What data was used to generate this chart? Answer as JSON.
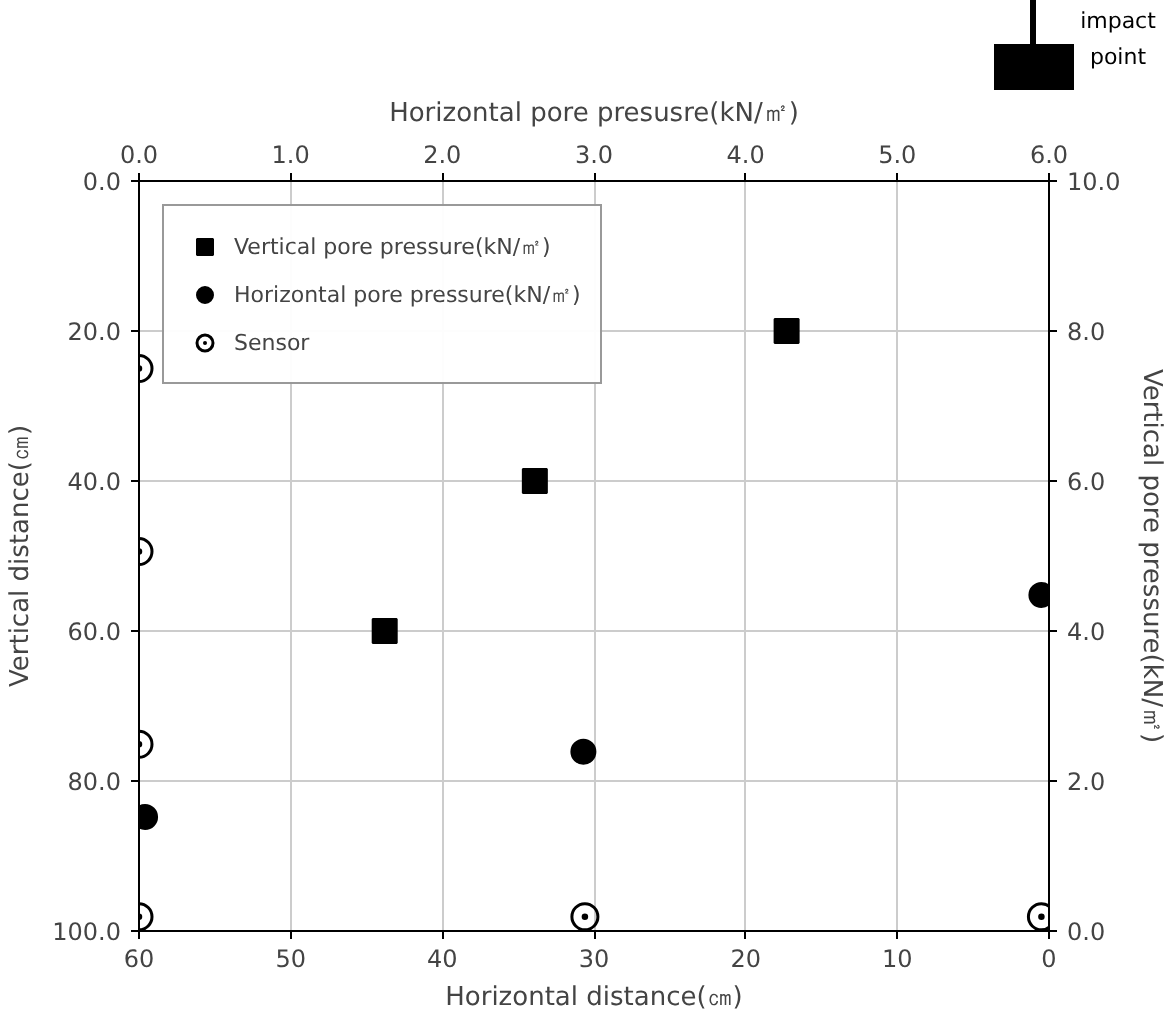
{
  "chart_data": {
    "type": "scatter",
    "xlabel": "Horizontal distance(㎝)",
    "ylabel": "Vertical distance(㎝)",
    "x2label": "Horizontal pore presusre(kN/㎡)",
    "y2label": "Vertical pore pressure(kN/㎡)",
    "xlim": [
      60,
      0
    ],
    "xticks": [
      {
        "value": 60,
        "label": "60"
      },
      {
        "value": 50,
        "label": "50"
      },
      {
        "value": 40,
        "label": "40"
      },
      {
        "value": 30,
        "label": "30"
      },
      {
        "value": 20,
        "label": "20"
      },
      {
        "value": 10,
        "label": "10"
      },
      {
        "value": 0,
        "label": "0"
      }
    ],
    "ylim": [
      100,
      0
    ],
    "yticks": [
      {
        "value": 0,
        "label": "0.0"
      },
      {
        "value": 20,
        "label": "20.0"
      },
      {
        "value": 40,
        "label": "40.0"
      },
      {
        "value": 60,
        "label": "60.0"
      },
      {
        "value": 80,
        "label": "80.0"
      },
      {
        "value": 100,
        "label": "100.0"
      }
    ],
    "x2lim": [
      0,
      6
    ],
    "x2ticks": [
      {
        "value": 0,
        "label": "0.0"
      },
      {
        "value": 1,
        "label": "1.0"
      },
      {
        "value": 2,
        "label": "2.0"
      },
      {
        "value": 3,
        "label": "3.0"
      },
      {
        "value": 4,
        "label": "4.0"
      },
      {
        "value": 5,
        "label": "5.0"
      },
      {
        "value": 6,
        "label": "6.0"
      }
    ],
    "y2lim": [
      0,
      10
    ],
    "y2ticks": [
      {
        "value": 0,
        "label": "0.0"
      },
      {
        "value": 2,
        "label": "2.0"
      },
      {
        "value": 4,
        "label": "4.0"
      },
      {
        "value": 6,
        "label": "6.0"
      },
      {
        "value": 8,
        "label": "8.0"
      },
      {
        "value": 10,
        "label": "10.0"
      }
    ],
    "grid": true,
    "legend": "top left",
    "series": [
      {
        "name": "Vertical pore pressure(kN/㎡)",
        "color": "#000000",
        "marker": "square",
        "x": [
          43.8,
          33.9,
          17.3
        ],
        "values": [
          60,
          40,
          20
        ]
      },
      {
        "name": "Horizontal pore pressure(kN/㎡)",
        "color": "#000000",
        "marker": "circle",
        "x": [
          59.6,
          30.7,
          0.5
        ],
        "values": [
          84.8,
          76.1,
          55.2
        ]
      },
      {
        "name": "Sensor",
        "color": "#000000",
        "marker": "double_circle",
        "x": [
          60,
          60,
          60,
          60,
          30.6,
          0.5
        ],
        "values": [
          25,
          49.4,
          75.1,
          98.1,
          98.1,
          98.1
        ]
      }
    ],
    "annotations": [
      "impact point"
    ]
  }
}
